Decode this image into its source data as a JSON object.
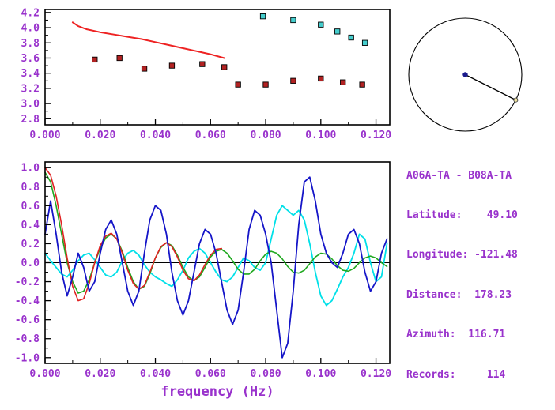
{
  "colors": {
    "axis_text": "#9932CC",
    "frame": "#000000",
    "dispersion_line": "#EE2222",
    "group_velocity_marker": "#B22222",
    "phase_velocity_marker": "#45CDCD",
    "waveform_blue": "#1515C8",
    "waveform_cyan": "#00E0E8",
    "waveform_green": "#1FA81F",
    "waveform_red": "#E02222",
    "center_dot": "#1A1A8C",
    "end_dot": "#EFE3A0"
  },
  "info_panel": {
    "station_pair": "A06A-TA - B08A-TA",
    "latitude": "49.10",
    "longitude": "-121.48",
    "distance": "178.23",
    "azimuth": "116.71",
    "records": "114",
    "lines": [
      "A06A-TA - B08A-TA",
      "Latitude:    49.10",
      "Longitude: -121.48",
      "Distance:  178.23",
      "Azimuth:  116.71",
      "Records:     114"
    ]
  },
  "azimuth_indicator": {
    "azimuth_deg": 116.71
  },
  "chart_data": [
    {
      "type": "scatter",
      "title": "",
      "xlabel": "",
      "ylabel": "",
      "xlim": [
        0,
        0.125
      ],
      "ylim": [
        2.72,
        4.24
      ],
      "xticks": [
        0,
        0.02,
        0.04,
        0.06,
        0.08,
        0.1,
        0.12
      ],
      "xtick_labels": [
        "0.000",
        "0.020",
        "0.040",
        "0.060",
        "0.080",
        "0.100",
        "0.120"
      ],
      "yticks": [
        2.8,
        3.0,
        3.2,
        3.4,
        3.6,
        3.8,
        4.0,
        4.2
      ],
      "ytick_labels": [
        "2.8",
        "3.0",
        "3.2",
        "3.4",
        "3.6",
        "3.8",
        "4.0",
        "4.2"
      ],
      "grid": false,
      "zero_line": false,
      "series": [
        {
          "name": "smoothed-dispersion-curve",
          "kind": "line",
          "color": "#EE2222",
          "width": 2,
          "x": [
            0.01,
            0.012,
            0.015,
            0.02,
            0.025,
            0.03,
            0.035,
            0.04,
            0.045,
            0.05,
            0.055,
            0.06,
            0.065
          ],
          "y": [
            4.07,
            4.02,
            3.98,
            3.94,
            3.91,
            3.88,
            3.85,
            3.81,
            3.77,
            3.73,
            3.69,
            3.65,
            3.6
          ]
        },
        {
          "name": "group-velocity-picks",
          "kind": "square",
          "color": "#B22222",
          "x": [
            0.018,
            0.027,
            0.036,
            0.046,
            0.057,
            0.065,
            0.07,
            0.08,
            0.09,
            0.1,
            0.108,
            0.115
          ],
          "y": [
            3.58,
            3.6,
            3.46,
            3.5,
            3.52,
            3.48,
            3.25,
            3.25,
            3.3,
            3.33,
            3.28,
            3.25
          ]
        },
        {
          "name": "phase-velocity-picks",
          "kind": "square",
          "color": "#45CDCD",
          "x": [
            0.079,
            0.09,
            0.1,
            0.106,
            0.111,
            0.116
          ],
          "y": [
            4.15,
            4.1,
            4.04,
            3.95,
            3.87,
            3.8
          ]
        }
      ]
    },
    {
      "type": "line",
      "title": "",
      "xlabel": "frequency (Hz)",
      "ylabel": "",
      "xlim": [
        0,
        0.125
      ],
      "ylim": [
        -1.06,
        1.06
      ],
      "xticks": [
        0,
        0.02,
        0.04,
        0.06,
        0.08,
        0.1,
        0.12
      ],
      "xtick_labels": [
        "0.000",
        "0.020",
        "0.040",
        "0.060",
        "0.080",
        "0.100",
        "0.120"
      ],
      "yticks": [
        -1.0,
        -0.8,
        -0.6,
        -0.4,
        -0.2,
        0.0,
        0.2,
        0.4,
        0.6,
        0.8,
        1.0
      ],
      "ytick_labels": [
        "-1.0",
        "-0.8",
        "-0.6",
        "-0.4",
        "-0.2",
        "0.0",
        "0.2",
        "0.4",
        "0.6",
        "0.8",
        "1.0"
      ],
      "grid": false,
      "zero_line": true,
      "series": [
        {
          "name": "waveform-cyan",
          "kind": "line",
          "color": "#00E0E8",
          "width": 1.8,
          "x_start": 0,
          "dx": 0.002,
          "y": [
            0.1,
            0.02,
            -0.05,
            -0.12,
            -0.15,
            -0.08,
            0.02,
            0.08,
            0.1,
            0.03,
            -0.05,
            -0.13,
            -0.15,
            -0.1,
            0.02,
            0.1,
            0.13,
            0.08,
            -0.02,
            -0.1,
            -0.15,
            -0.18,
            -0.22,
            -0.25,
            -0.18,
            -0.08,
            0.05,
            0.12,
            0.15,
            0.1,
            0.0,
            -0.1,
            -0.18,
            -0.2,
            -0.15,
            -0.05,
            0.05,
            0.02,
            -0.05,
            -0.08,
            0.0,
            0.25,
            0.5,
            0.6,
            0.55,
            0.5,
            0.55,
            0.45,
            0.2,
            -0.1,
            -0.35,
            -0.45,
            -0.4,
            -0.28,
            -0.15,
            -0.05,
            0.1,
            0.3,
            0.25,
            0.0,
            -0.2,
            -0.15,
            0.2
          ]
        },
        {
          "name": "waveform-green",
          "kind": "line",
          "color": "#1FA81F",
          "width": 1.6,
          "x_start": 0,
          "dx": 0.002,
          "y": [
            0.95,
            0.85,
            0.6,
            0.3,
            0.0,
            -0.2,
            -0.32,
            -0.3,
            -0.18,
            0.0,
            0.15,
            0.26,
            0.3,
            0.25,
            0.12,
            -0.05,
            -0.2,
            -0.28,
            -0.25,
            -0.12,
            0.05,
            0.16,
            0.21,
            0.18,
            0.08,
            -0.05,
            -0.15,
            -0.19,
            -0.15,
            -0.05,
            0.06,
            0.12,
            0.14,
            0.1,
            0.02,
            -0.07,
            -0.12,
            -0.12,
            -0.07,
            0.02,
            0.09,
            0.12,
            0.1,
            0.04,
            -0.04,
            -0.1,
            -0.11,
            -0.08,
            -0.01,
            0.06,
            0.1,
            0.09,
            0.04,
            -0.03,
            -0.08,
            -0.09,
            -0.06,
            0.0,
            0.05,
            0.07,
            0.05,
            0.0,
            -0.04
          ]
        },
        {
          "name": "waveform-red",
          "kind": "line",
          "color": "#E02222",
          "width": 1.6,
          "x_start": 0,
          "dx": 0.002,
          "y": [
            1.0,
            0.92,
            0.7,
            0.4,
            0.05,
            -0.25,
            -0.4,
            -0.38,
            -0.22,
            0.0,
            0.18,
            0.28,
            0.31,
            0.25,
            0.1,
            -0.08,
            -0.22,
            -0.28,
            -0.24,
            -0.1,
            0.05,
            0.17,
            0.21,
            0.17,
            0.06,
            -0.08,
            -0.17,
            -0.19,
            -0.13,
            -0.02,
            0.08,
            0.14,
            0.15
          ]
        },
        {
          "name": "waveform-blue",
          "kind": "line",
          "color": "#1515C8",
          "width": 1.8,
          "x_start": 0,
          "dx": 0.002,
          "y": [
            0.3,
            0.65,
            0.3,
            -0.1,
            -0.35,
            -0.15,
            0.1,
            -0.05,
            -0.3,
            -0.2,
            0.1,
            0.35,
            0.45,
            0.3,
            0.0,
            -0.3,
            -0.45,
            -0.3,
            0.1,
            0.45,
            0.6,
            0.55,
            0.3,
            -0.1,
            -0.4,
            -0.55,
            -0.4,
            -0.1,
            0.2,
            0.35,
            0.3,
            0.1,
            -0.2,
            -0.5,
            -0.65,
            -0.5,
            -0.1,
            0.35,
            0.55,
            0.5,
            0.3,
            0.0,
            -0.5,
            -1.0,
            -0.85,
            -0.3,
            0.4,
            0.85,
            0.9,
            0.65,
            0.3,
            0.1,
            0.0,
            -0.05,
            0.1,
            0.3,
            0.35,
            0.2,
            -0.1,
            -0.3,
            -0.2,
            0.1,
            0.25
          ]
        }
      ]
    }
  ]
}
